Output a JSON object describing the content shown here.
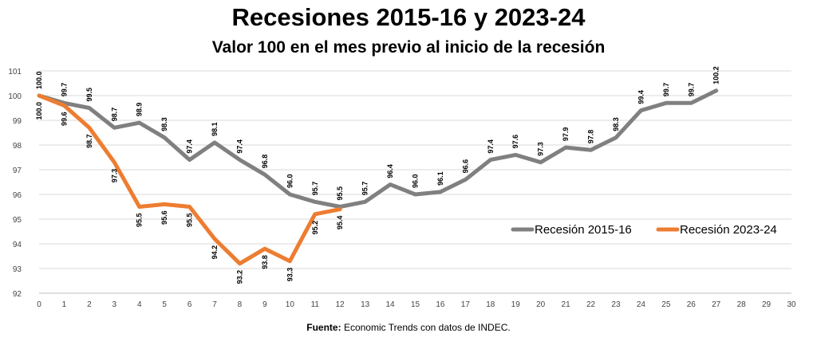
{
  "title": "Recesiones 2015-16 y 2023-24",
  "subtitle": "Valor 100 en el mes previo al inicio de la recesión",
  "source": {
    "label": "Fuente:",
    "text": "Economic Trends con datos de INDEC."
  },
  "chart_data": {
    "type": "line",
    "title": "Recesiones 2015-16 y 2023-24",
    "subtitle": "Valor 100 en el mes previo al inicio de la recesión",
    "xlabel": "",
    "ylabel": "",
    "x": [
      0,
      1,
      2,
      3,
      4,
      5,
      6,
      7,
      8,
      9,
      10,
      11,
      12,
      13,
      14,
      15,
      16,
      17,
      18,
      19,
      20,
      21,
      22,
      23,
      24,
      25,
      26,
      27,
      28,
      29,
      30
    ],
    "xlim": [
      0,
      30
    ],
    "ylim": [
      92,
      101
    ],
    "yticks": [
      92,
      93,
      94,
      95,
      96,
      97,
      98,
      99,
      100,
      101
    ],
    "grid": true,
    "legend_position": "right",
    "series": [
      {
        "name": "Recesión 2015-16",
        "color": "#808080",
        "x": [
          0,
          1,
          2,
          3,
          4,
          5,
          6,
          7,
          8,
          9,
          10,
          11,
          12,
          13,
          14,
          15,
          16,
          17,
          18,
          19,
          20,
          21,
          22,
          23,
          24,
          25,
          26,
          27
        ],
        "values": [
          100.0,
          99.7,
          99.5,
          98.7,
          98.9,
          98.3,
          97.4,
          98.1,
          97.4,
          96.8,
          96.0,
          95.7,
          95.5,
          95.7,
          96.4,
          96.0,
          96.1,
          96.6,
          97.4,
          97.6,
          97.3,
          97.9,
          97.8,
          98.3,
          99.4,
          99.7,
          99.7,
          100.2
        ],
        "labels": [
          "100.0",
          "99.7",
          "99.5",
          "98.7",
          "98.9",
          "98.3",
          "97.4",
          "98.1",
          "97.4",
          "96.8",
          "96.0",
          "95.7",
          "95.5",
          "95.7",
          "96.4",
          "96.0",
          "96.1",
          "96.6",
          "97.4",
          "97.6",
          "97.3",
          "97.9",
          "97.8",
          "98.3",
          "99.4",
          "99.7",
          "99.7",
          "100.2"
        ]
      },
      {
        "name": "Recesión 2023-24",
        "color": "#ED7D31",
        "x": [
          0,
          1,
          2,
          3,
          4,
          5,
          6,
          7,
          8,
          9,
          10,
          11,
          12
        ],
        "values": [
          100.0,
          99.6,
          98.7,
          97.3,
          95.5,
          95.6,
          95.5,
          94.2,
          93.2,
          93.8,
          93.3,
          95.2,
          95.4
        ],
        "labels": [
          "100.0",
          "99.6",
          "98.7",
          "97.3",
          "95.5",
          "95.6",
          "95.5",
          "94.2",
          "93.2",
          "93.8",
          "93.3",
          "95.2",
          "95.4"
        ]
      }
    ]
  }
}
